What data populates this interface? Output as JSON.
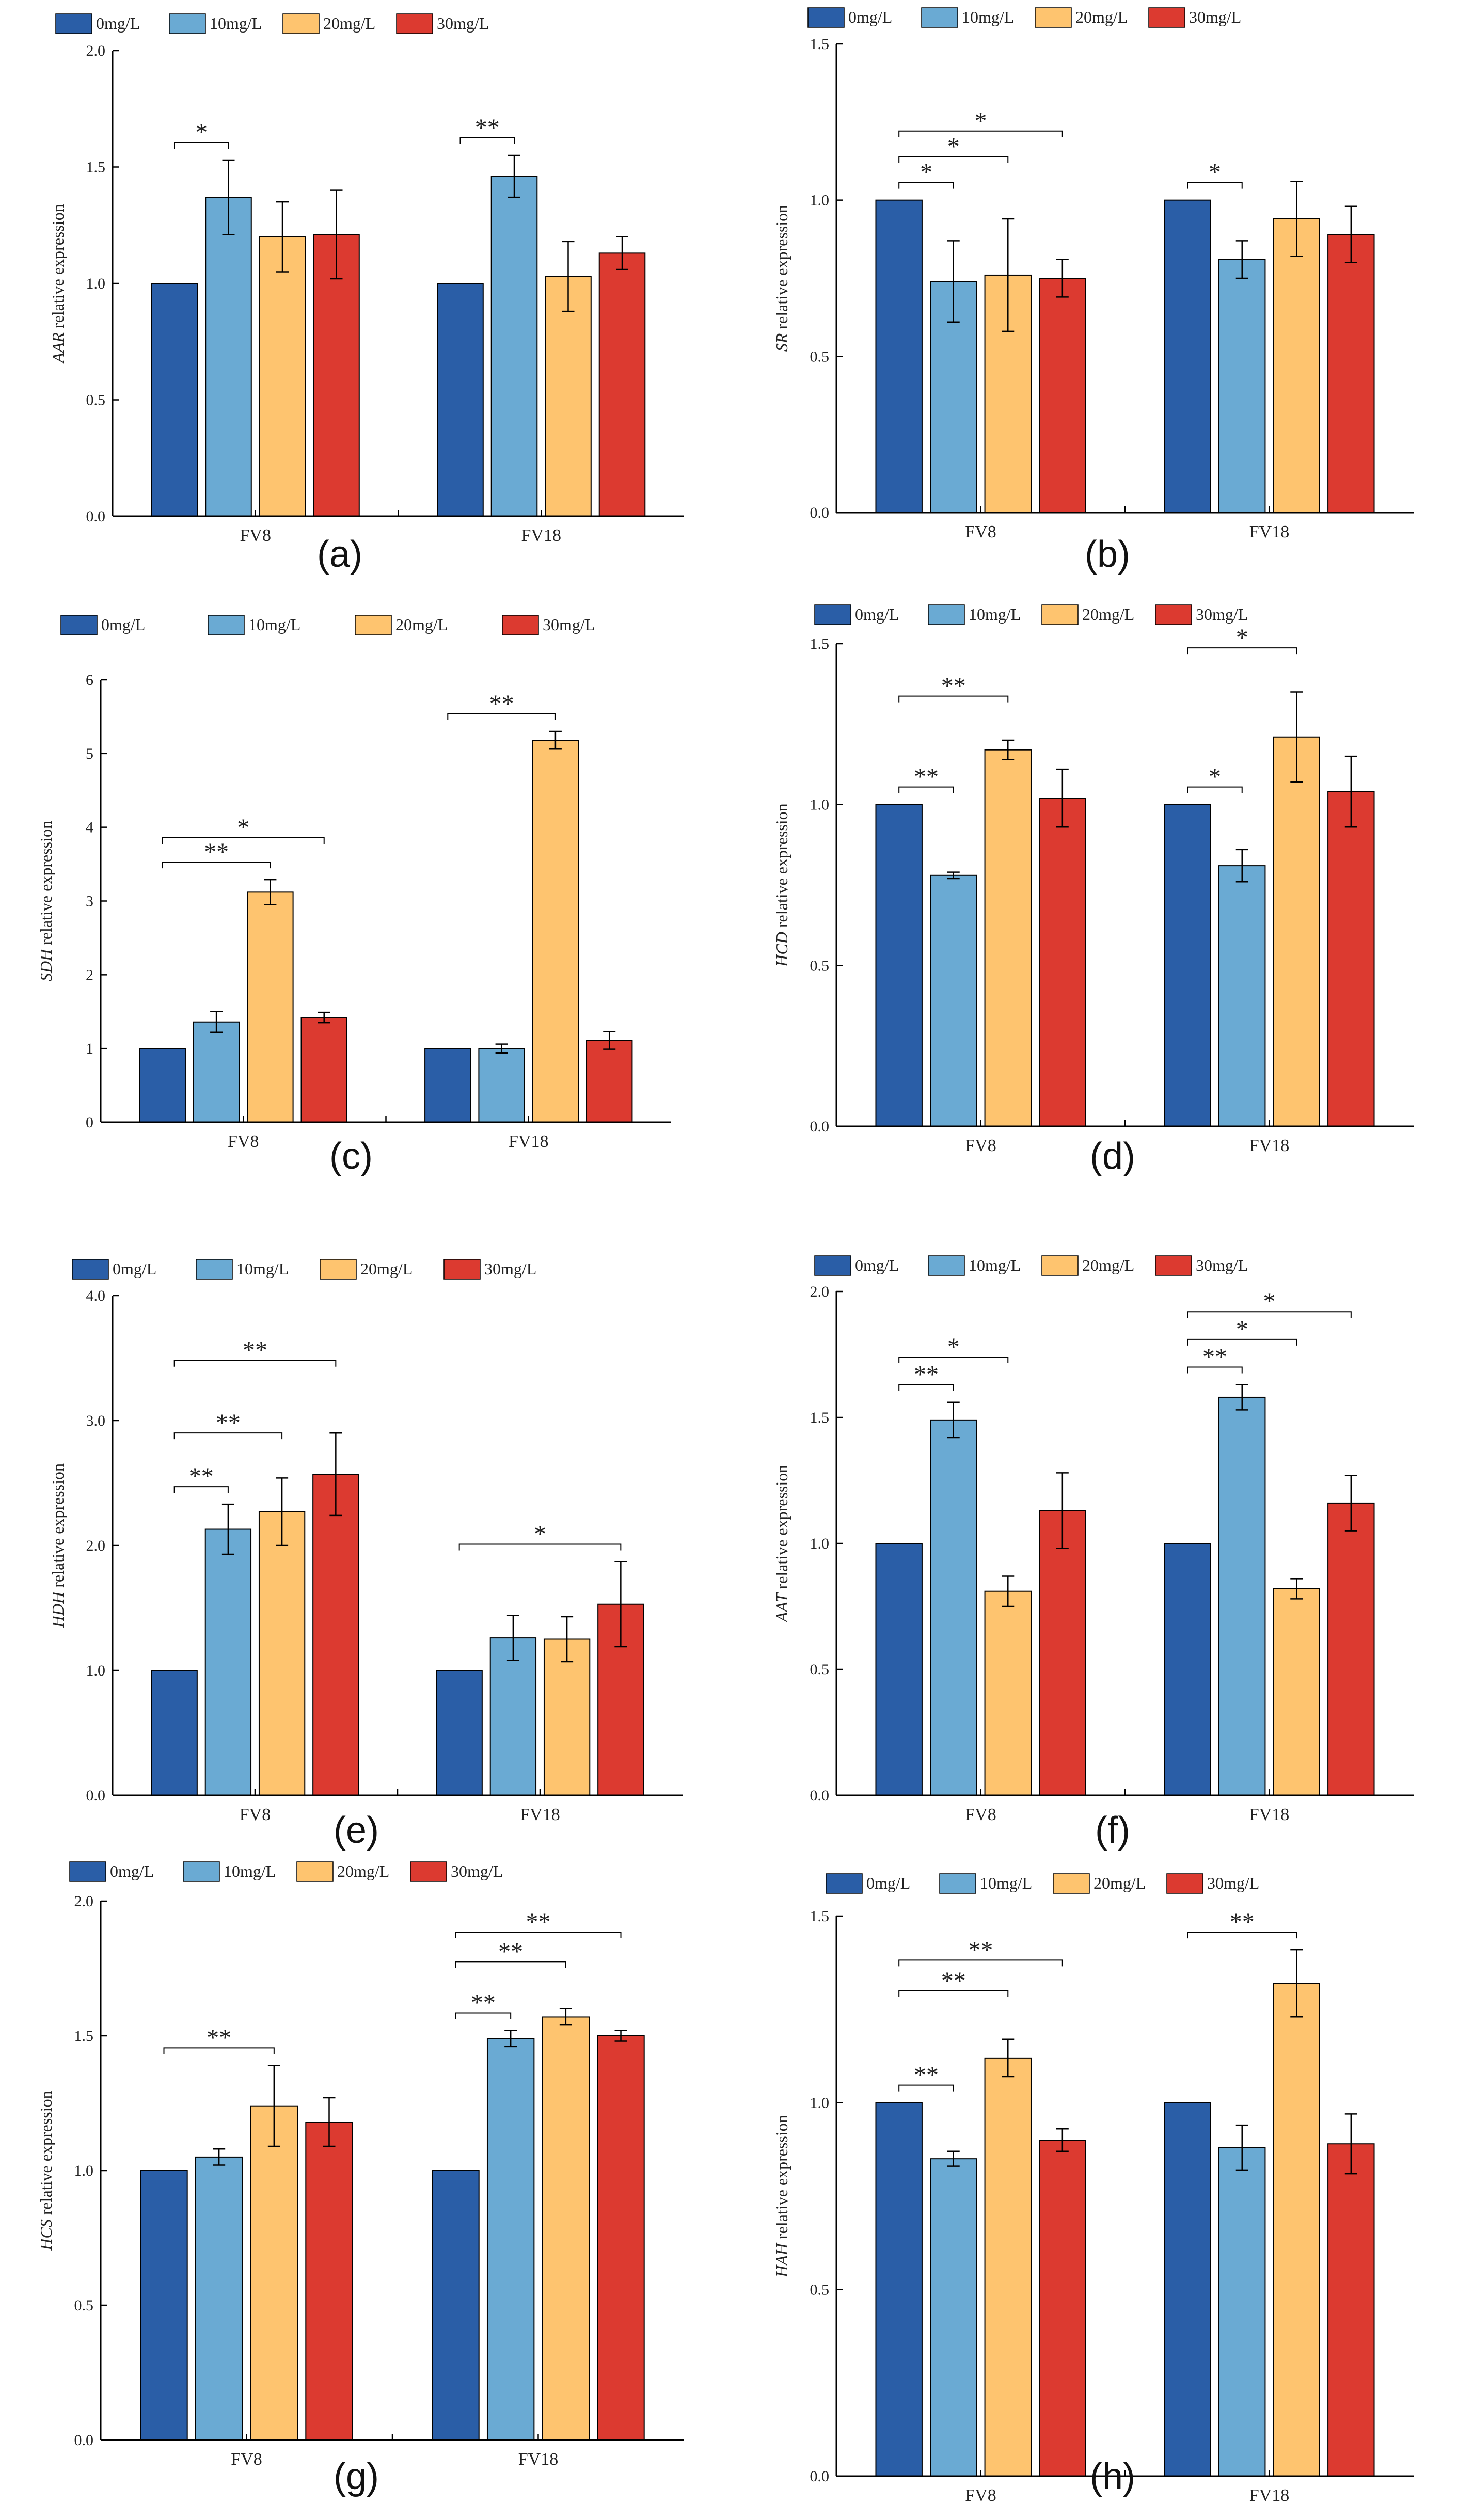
{
  "colors": {
    "0mg/L": "#2a5ea7",
    "10mg/L": "#6aaad3",
    "20mg/L": "#fec46f",
    "30mg/L": "#dc3a30",
    "axis": "#000000"
  },
  "chart_data": [
    {
      "type": "bar",
      "panel": "(a)",
      "gene": "AAR",
      "ylabel_suffix": " relative expression",
      "categories": [
        "FV8",
        "FV18"
      ],
      "ylim": [
        0,
        2.0
      ],
      "yticks": [
        "0.0",
        "0.5",
        "1.0",
        "1.5",
        "2.0"
      ],
      "series": [
        {
          "name": "0mg/L",
          "values": [
            1.0,
            1.0
          ],
          "errors": [
            0,
            0
          ]
        },
        {
          "name": "10mg/L",
          "values": [
            1.37,
            1.46
          ],
          "errors": [
            0.16,
            0.09
          ]
        },
        {
          "name": "20mg/L",
          "values": [
            1.2,
            1.03
          ],
          "errors": [
            0.15,
            0.15
          ]
        },
        {
          "name": "30mg/L",
          "values": [
            1.21,
            1.13
          ],
          "errors": [
            0.19,
            0.07
          ]
        }
      ],
      "significance": [
        {
          "group": 0,
          "from": 0,
          "to": 1,
          "label": "*"
        },
        {
          "group": 1,
          "from": 0,
          "to": 1,
          "label": "**"
        }
      ]
    },
    {
      "type": "bar",
      "panel": "(b)",
      "gene": "SR",
      "ylabel_suffix": " relative expression",
      "categories": [
        "FV8",
        "FV18"
      ],
      "ylim": [
        0,
        1.5
      ],
      "yticks": [
        "0.0",
        "0.5",
        "1.0",
        "1.5"
      ],
      "series": [
        {
          "name": "0mg/L",
          "values": [
            1.0,
            1.0
          ],
          "errors": [
            0,
            0
          ]
        },
        {
          "name": "10mg/L",
          "values": [
            0.74,
            0.81
          ],
          "errors": [
            0.13,
            0.06
          ]
        },
        {
          "name": "20mg/L",
          "values": [
            0.76,
            0.94
          ],
          "errors": [
            0.18,
            0.12
          ]
        },
        {
          "name": "30mg/L",
          "values": [
            0.75,
            0.89
          ],
          "errors": [
            0.06,
            0.09
          ]
        }
      ],
      "significance": [
        {
          "group": 0,
          "from": 0,
          "to": 1,
          "label": "*"
        },
        {
          "group": 0,
          "from": 0,
          "to": 2,
          "label": "*"
        },
        {
          "group": 0,
          "from": 0,
          "to": 3,
          "label": "*"
        },
        {
          "group": 1,
          "from": 0,
          "to": 1,
          "label": "*"
        }
      ]
    },
    {
      "type": "bar",
      "panel": "(c)",
      "gene": "SDH",
      "ylabel_suffix": " relative expression",
      "categories": [
        "FV8",
        "FV18"
      ],
      "ylim": [
        0,
        6
      ],
      "yticks": [
        "0",
        "1",
        "2",
        "3",
        "4",
        "5",
        "6"
      ],
      "series": [
        {
          "name": "0mg/L",
          "values": [
            1.0,
            1.0
          ],
          "errors": [
            0,
            0
          ]
        },
        {
          "name": "10mg/L",
          "values": [
            1.36,
            1.0
          ],
          "errors": [
            0.14,
            0.06
          ]
        },
        {
          "name": "20mg/L",
          "values": [
            3.12,
            5.18
          ],
          "errors": [
            0.17,
            0.12
          ]
        },
        {
          "name": "30mg/L",
          "values": [
            1.42,
            1.11
          ],
          "errors": [
            0.07,
            0.12
          ]
        }
      ],
      "significance": [
        {
          "group": 0,
          "from": 0,
          "to": 2,
          "label": "**"
        },
        {
          "group": 0,
          "from": 0,
          "to": 3,
          "label": "*"
        },
        {
          "group": 1,
          "from": 0,
          "to": 2,
          "label": "**"
        }
      ]
    },
    {
      "type": "bar",
      "panel": "(d)",
      "gene": "HCD",
      "ylabel_suffix": " relative expression",
      "categories": [
        "FV8",
        "FV18"
      ],
      "ylim": [
        0,
        1.5
      ],
      "yticks": [
        "0.0",
        "0.5",
        "1.0",
        "1.5"
      ],
      "series": [
        {
          "name": "0mg/L",
          "values": [
            1.0,
            1.0
          ],
          "errors": [
            0,
            0
          ]
        },
        {
          "name": "10mg/L",
          "values": [
            0.78,
            0.81
          ],
          "errors": [
            0.01,
            0.05
          ]
        },
        {
          "name": "20mg/L",
          "values": [
            1.17,
            1.21
          ],
          "errors": [
            0.03,
            0.14
          ]
        },
        {
          "name": "30mg/L",
          "values": [
            1.02,
            1.04
          ],
          "errors": [
            0.09,
            0.11
          ]
        }
      ],
      "significance": [
        {
          "group": 0,
          "from": 0,
          "to": 1,
          "label": "**"
        },
        {
          "group": 0,
          "from": 0,
          "to": 2,
          "label": "**"
        },
        {
          "group": 1,
          "from": 0,
          "to": 1,
          "label": "*"
        },
        {
          "group": 1,
          "from": 0,
          "to": 2,
          "label": "*"
        }
      ]
    },
    {
      "type": "bar",
      "panel": "(e)",
      "gene": "HDH",
      "ylabel_suffix": " relative expression",
      "categories": [
        "FV8",
        "FV18"
      ],
      "ylim": [
        0,
        4.0
      ],
      "yticks": [
        "0.0",
        "1.0",
        "2.0",
        "3.0",
        "4.0"
      ],
      "series": [
        {
          "name": "0mg/L",
          "values": [
            1.0,
            1.0
          ],
          "errors": [
            0,
            0
          ]
        },
        {
          "name": "10mg/L",
          "values": [
            2.13,
            1.26
          ],
          "errors": [
            0.2,
            0.18
          ]
        },
        {
          "name": "20mg/L",
          "values": [
            2.27,
            1.25
          ],
          "errors": [
            0.27,
            0.18
          ]
        },
        {
          "name": "30mg/L",
          "values": [
            2.57,
            1.53
          ],
          "errors": [
            0.33,
            0.34
          ]
        }
      ],
      "significance": [
        {
          "group": 0,
          "from": 0,
          "to": 1,
          "label": "**"
        },
        {
          "group": 0,
          "from": 0,
          "to": 2,
          "label": "**"
        },
        {
          "group": 0,
          "from": 0,
          "to": 3,
          "label": "**"
        },
        {
          "group": 1,
          "from": 0,
          "to": 3,
          "label": "*"
        }
      ]
    },
    {
      "type": "bar",
      "panel": "(f)",
      "gene": "AAT",
      "ylabel_suffix": " relative expression",
      "categories": [
        "FV8",
        "FV18"
      ],
      "ylim": [
        0,
        2.0
      ],
      "yticks": [
        "0.0",
        "0.5",
        "1.0",
        "1.5",
        "2.0"
      ],
      "series": [
        {
          "name": "0mg/L",
          "values": [
            1.0,
            1.0
          ],
          "errors": [
            0,
            0
          ]
        },
        {
          "name": "10mg/L",
          "values": [
            1.49,
            1.58
          ],
          "errors": [
            0.07,
            0.05
          ]
        },
        {
          "name": "20mg/L",
          "values": [
            0.81,
            0.82
          ],
          "errors": [
            0.06,
            0.04
          ]
        },
        {
          "name": "30mg/L",
          "values": [
            1.13,
            1.16
          ],
          "errors": [
            0.15,
            0.11
          ]
        }
      ],
      "significance": [
        {
          "group": 0,
          "from": 0,
          "to": 1,
          "label": "**"
        },
        {
          "group": 0,
          "from": 0,
          "to": 2,
          "label": "*"
        },
        {
          "group": 1,
          "from": 0,
          "to": 1,
          "label": "**"
        },
        {
          "group": 1,
          "from": 0,
          "to": 2,
          "label": "*"
        },
        {
          "group": 1,
          "from": 0,
          "to": 3,
          "label": "*"
        }
      ]
    },
    {
      "type": "bar",
      "panel": "(g)",
      "gene": "HCS",
      "ylabel_suffix": " relative expression",
      "categories": [
        "FV8",
        "FV18"
      ],
      "ylim": [
        0,
        2.0
      ],
      "yticks": [
        "0.0",
        "0.5",
        "1.0",
        "1.5",
        "2.0"
      ],
      "series": [
        {
          "name": "0mg/L",
          "values": [
            1.0,
            1.0
          ],
          "errors": [
            0,
            0
          ]
        },
        {
          "name": "10mg/L",
          "values": [
            1.05,
            1.49
          ],
          "errors": [
            0.03,
            0.03
          ]
        },
        {
          "name": "20mg/L",
          "values": [
            1.24,
            1.57
          ],
          "errors": [
            0.15,
            0.03
          ]
        },
        {
          "name": "30mg/L",
          "values": [
            1.18,
            1.5
          ],
          "errors": [
            0.09,
            0.02
          ]
        }
      ],
      "significance": [
        {
          "group": 0,
          "from": 0,
          "to": 2,
          "label": "**"
        },
        {
          "group": 1,
          "from": 0,
          "to": 1,
          "label": "**"
        },
        {
          "group": 1,
          "from": 0,
          "to": 2,
          "label": "**"
        },
        {
          "group": 1,
          "from": 0,
          "to": 3,
          "label": "**"
        }
      ]
    },
    {
      "type": "bar",
      "panel": "(h)",
      "gene": "HAH",
      "ylabel_suffix": " relative expression",
      "categories": [
        "FV8",
        "FV18"
      ],
      "ylim": [
        0,
        1.5
      ],
      "yticks": [
        "0.0",
        "0.5",
        "1.0",
        "1.5"
      ],
      "series": [
        {
          "name": "0mg/L",
          "values": [
            1.0,
            1.0
          ],
          "errors": [
            0,
            0
          ]
        },
        {
          "name": "10mg/L",
          "values": [
            0.85,
            0.88
          ],
          "errors": [
            0.02,
            0.06
          ]
        },
        {
          "name": "20mg/L",
          "values": [
            1.12,
            1.32
          ],
          "errors": [
            0.05,
            0.09
          ]
        },
        {
          "name": "30mg/L",
          "values": [
            0.9,
            0.89
          ],
          "errors": [
            0.03,
            0.08
          ]
        }
      ],
      "significance": [
        {
          "group": 0,
          "from": 0,
          "to": 1,
          "label": "**"
        },
        {
          "group": 0,
          "from": 0,
          "to": 2,
          "label": "**"
        },
        {
          "group": 0,
          "from": 0,
          "to": 3,
          "label": "**"
        },
        {
          "group": 1,
          "from": 0,
          "to": 2,
          "label": "**"
        }
      ]
    }
  ]
}
